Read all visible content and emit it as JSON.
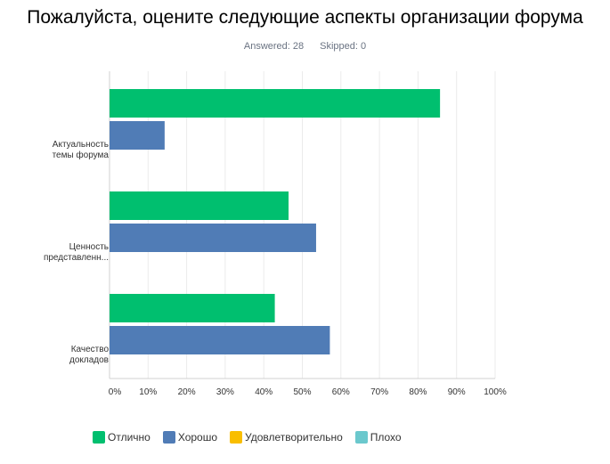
{
  "title": "Пожалуйста, оцените следующие аспекты организации  форума",
  "answered": "Answered: 28",
  "skipped": "Skipped: 0",
  "chart_data": {
    "type": "bar",
    "orientation": "horizontal",
    "title": "Пожалуйста, оцените следующие аспекты организации  форума",
    "categories": [
      [
        "Актуальность",
        "темы форума"
      ],
      [
        "Ценность",
        "представленн..."
      ],
      [
        "Качество",
        "докладов"
      ]
    ],
    "series": [
      {
        "name": "Отлично",
        "color": "#00bf6f",
        "values": [
          85.71,
          46.43,
          42.86
        ]
      },
      {
        "name": "Хорошо",
        "color": "#507cb6",
        "values": [
          14.29,
          53.57,
          57.14
        ]
      },
      {
        "name": "Удовлетворительно",
        "color": "#f9be00",
        "values": [
          0,
          0,
          0
        ]
      },
      {
        "name": "Плохо",
        "color": "#6bc8cd",
        "values": [
          0,
          0,
          0
        ]
      }
    ],
    "xlim": [
      0,
      100
    ],
    "ticks": [
      "0%",
      "10%",
      "20%",
      "30%",
      "40%",
      "50%",
      "60%",
      "70%",
      "80%",
      "90%",
      "100%"
    ],
    "grid": true,
    "legend": "bottom-left"
  }
}
